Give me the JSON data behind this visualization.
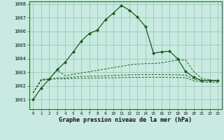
{
  "title": "Graphe pression niveau de la mer (hPa)",
  "background_color": "#c8eae0",
  "grid_color": "#90c4b0",
  "line_color": "#1a5c1a",
  "xlim": [
    -0.5,
    23.5
  ],
  "ylim": [
    1000.3,
    1008.2
  ],
  "yticks": [
    1001,
    1002,
    1003,
    1004,
    1005,
    1006,
    1007,
    1008
  ],
  "xticks": [
    0,
    1,
    2,
    3,
    4,
    5,
    6,
    7,
    8,
    9,
    10,
    11,
    12,
    13,
    14,
    15,
    16,
    17,
    18,
    19,
    20,
    21,
    22,
    23
  ],
  "series": {
    "main": {
      "x": [
        0,
        1,
        2,
        3,
        4,
        5,
        6,
        7,
        8,
        9,
        10,
        11,
        12,
        13,
        14,
        15,
        16,
        17,
        18,
        19,
        20,
        21,
        22,
        23
      ],
      "y": [
        1001.0,
        1001.85,
        1002.5,
        1003.2,
        1003.75,
        1004.5,
        1005.3,
        1005.85,
        1006.1,
        1006.85,
        1007.35,
        1007.9,
        1007.55,
        1007.05,
        1006.35,
        1004.4,
        1004.5,
        1004.55,
        1004.0,
        1003.05,
        1002.65,
        1002.4,
        1002.4,
        1002.4
      ]
    },
    "avg1": {
      "x": [
        0,
        1,
        2,
        3,
        4,
        5,
        6,
        7,
        8,
        9,
        10,
        11,
        12,
        13,
        14,
        15,
        16,
        17,
        18,
        19,
        20,
        21,
        22,
        23
      ],
      "y": [
        1001.5,
        1002.5,
        1002.5,
        1003.15,
        1002.75,
        1002.85,
        1002.95,
        1003.05,
        1003.15,
        1003.25,
        1003.35,
        1003.45,
        1003.55,
        1003.6,
        1003.65,
        1003.65,
        1003.7,
        1003.8,
        1003.9,
        1003.9,
        1003.05,
        1002.55,
        1002.45,
        1002.4
      ]
    },
    "avg2": {
      "x": [
        0,
        1,
        2,
        3,
        4,
        5,
        6,
        7,
        8,
        9,
        10,
        11,
        12,
        13,
        14,
        15,
        16,
        17,
        18,
        19,
        20,
        21,
        22,
        23
      ],
      "y": [
        1001.5,
        1002.45,
        1002.5,
        1002.6,
        1002.6,
        1002.65,
        1002.7,
        1002.72,
        1002.73,
        1002.75,
        1002.77,
        1002.8,
        1002.82,
        1002.83,
        1002.84,
        1002.84,
        1002.84,
        1002.83,
        1002.82,
        1002.8,
        1002.5,
        1002.4,
        1002.37,
        1002.35
      ]
    },
    "avg3": {
      "x": [
        0,
        1,
        2,
        3,
        4,
        5,
        6,
        7,
        8,
        9,
        10,
        11,
        12,
        13,
        14,
        15,
        16,
        17,
        18,
        19,
        20,
        21,
        22,
        23
      ],
      "y": [
        1001.5,
        1002.4,
        1002.5,
        1002.52,
        1002.52,
        1002.55,
        1002.57,
        1002.57,
        1002.58,
        1002.6,
        1002.6,
        1002.62,
        1002.63,
        1002.63,
        1002.64,
        1002.64,
        1002.64,
        1002.63,
        1002.62,
        1002.6,
        1002.38,
        1002.3,
        1002.27,
        1002.25
      ]
    }
  }
}
